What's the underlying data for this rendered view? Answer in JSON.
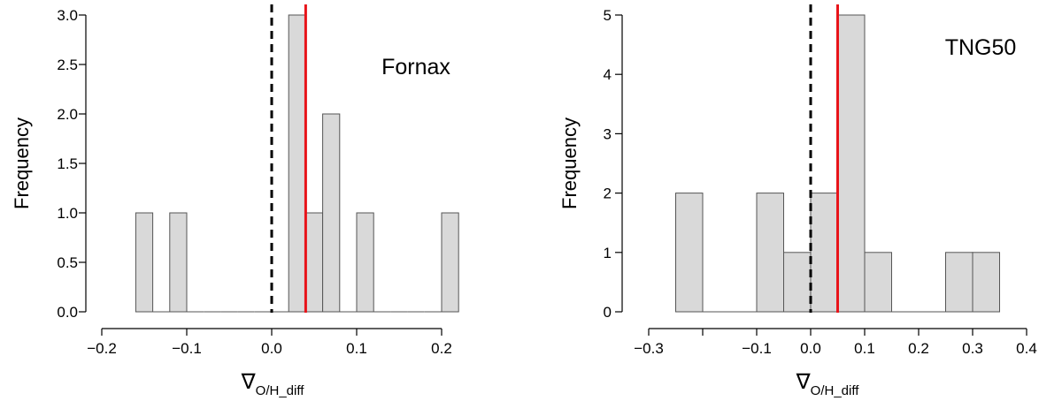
{
  "chart_data": [
    {
      "type": "bar",
      "panel_label": "Fornax",
      "xlabel_main": "∇",
      "xlabel_sub": "O/H_diff",
      "ylabel": "Frequency",
      "xlim": [
        -0.2,
        0.2
      ],
      "ylim": [
        0,
        3
      ],
      "xticks": [
        -0.2,
        -0.1,
        0.0,
        0.1,
        0.2
      ],
      "xtick_labels": [
        "−0.2",
        "−0.1",
        "0.0",
        "0.1",
        "0.2"
      ],
      "yticks": [
        0,
        0.5,
        1,
        1.5,
        2,
        2.5,
        3
      ],
      "ytick_labels": [
        "0.0",
        "0.5",
        "1.0",
        "1.5",
        "2.0",
        "2.5",
        "3.0"
      ],
      "bins": [
        {
          "x0": -0.16,
          "x1": -0.14,
          "count": 1
        },
        {
          "x0": -0.14,
          "x1": -0.12,
          "count": 0
        },
        {
          "x0": -0.12,
          "x1": -0.1,
          "count": 1
        },
        {
          "x0": -0.1,
          "x1": -0.08,
          "count": 0
        },
        {
          "x0": -0.08,
          "x1": -0.06,
          "count": 0
        },
        {
          "x0": -0.06,
          "x1": -0.04,
          "count": 0
        },
        {
          "x0": -0.04,
          "x1": -0.02,
          "count": 0
        },
        {
          "x0": -0.02,
          "x1": 0.0,
          "count": 0
        },
        {
          "x0": 0.0,
          "x1": 0.02,
          "count": 0
        },
        {
          "x0": 0.02,
          "x1": 0.04,
          "count": 3
        },
        {
          "x0": 0.04,
          "x1": 0.06,
          "count": 1
        },
        {
          "x0": 0.06,
          "x1": 0.08,
          "count": 2
        },
        {
          "x0": 0.08,
          "x1": 0.1,
          "count": 0
        },
        {
          "x0": 0.1,
          "x1": 0.12,
          "count": 1
        },
        {
          "x0": 0.12,
          "x1": 0.14,
          "count": 0
        },
        {
          "x0": 0.14,
          "x1": 0.16,
          "count": 0
        },
        {
          "x0": 0.16,
          "x1": 0.18,
          "count": 0
        },
        {
          "x0": 0.18,
          "x1": 0.2,
          "count": 0
        },
        {
          "x0": 0.2,
          "x1": 0.22,
          "count": 1
        }
      ],
      "reference_lines": [
        {
          "x": 0.0,
          "color": "#000000",
          "style": "dashed"
        },
        {
          "x": 0.04,
          "color": "#e8141a",
          "style": "solid"
        }
      ],
      "bar_color": "#d9d9d9"
    },
    {
      "type": "bar",
      "panel_label": "TNG50",
      "xlabel_main": "∇",
      "xlabel_sub": "O/H_diff",
      "ylabel": "Frequency",
      "xlim": [
        -0.3,
        0.4
      ],
      "ylim": [
        0,
        5
      ],
      "xticks": [
        -0.3,
        -0.2,
        -0.1,
        0.0,
        0.1,
        0.2,
        0.3,
        0.4
      ],
      "xtick_labels": [
        "−0.3",
        "",
        "−0.1",
        "0.0",
        "0.1",
        "0.2",
        "0.3",
        "0.4"
      ],
      "yticks": [
        0,
        1,
        2,
        3,
        4,
        5
      ],
      "ytick_labels": [
        "0",
        "1",
        "2",
        "3",
        "4",
        "5"
      ],
      "bins": [
        {
          "x0": -0.25,
          "x1": -0.2,
          "count": 2
        },
        {
          "x0": -0.2,
          "x1": -0.15,
          "count": 0
        },
        {
          "x0": -0.15,
          "x1": -0.1,
          "count": 0
        },
        {
          "x0": -0.1,
          "x1": -0.05,
          "count": 2
        },
        {
          "x0": -0.05,
          "x1": 0.0,
          "count": 1
        },
        {
          "x0": 0.0,
          "x1": 0.05,
          "count": 2
        },
        {
          "x0": 0.05,
          "x1": 0.1,
          "count": 5
        },
        {
          "x0": 0.1,
          "x1": 0.15,
          "count": 1
        },
        {
          "x0": 0.15,
          "x1": 0.2,
          "count": 0
        },
        {
          "x0": 0.2,
          "x1": 0.25,
          "count": 0
        },
        {
          "x0": 0.25,
          "x1": 0.3,
          "count": 1
        },
        {
          "x0": 0.3,
          "x1": 0.35,
          "count": 1
        }
      ],
      "reference_lines": [
        {
          "x": 0.0,
          "color": "#000000",
          "style": "dashed"
        },
        {
          "x": 0.05,
          "color": "#e8141a",
          "style": "solid"
        }
      ],
      "bar_color": "#d9d9d9"
    }
  ]
}
